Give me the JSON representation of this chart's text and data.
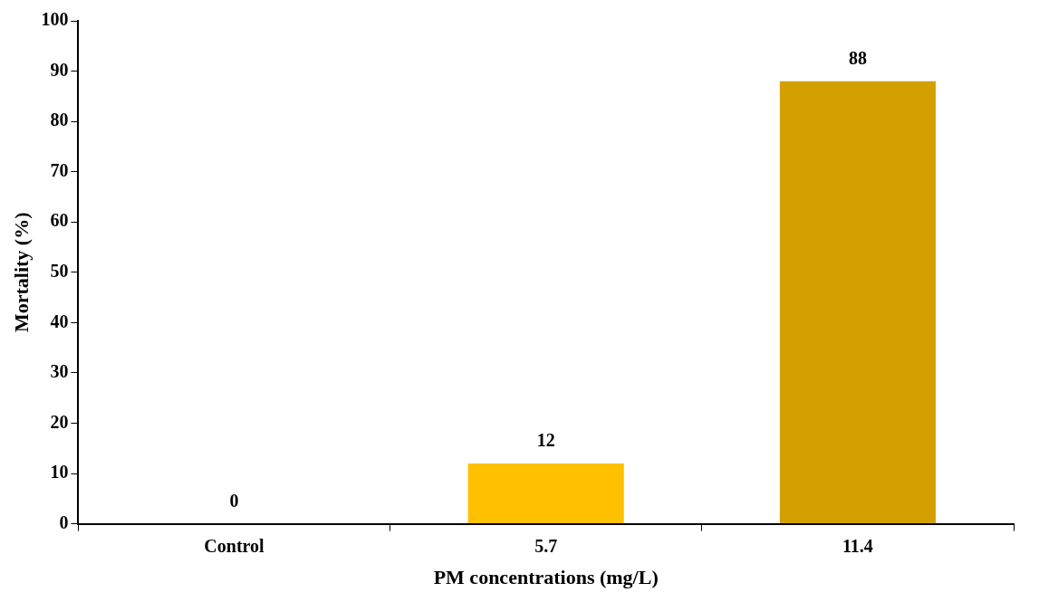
{
  "chart_data": {
    "type": "bar",
    "xlabel": "PM concentrations (mg/L)",
    "ylabel": "Mortality (%)",
    "categories": [
      "Control",
      "5.7",
      "11.4"
    ],
    "values": [
      0,
      12,
      88
    ],
    "colors": [
      "#ffc000",
      "#ffc000",
      "#d4a000"
    ],
    "ylim": [
      0,
      100
    ],
    "yticks": [
      0,
      10,
      20,
      30,
      40,
      50,
      60,
      70,
      80,
      90,
      100
    ],
    "grid": false,
    "legend": false,
    "data_labels": true
  }
}
